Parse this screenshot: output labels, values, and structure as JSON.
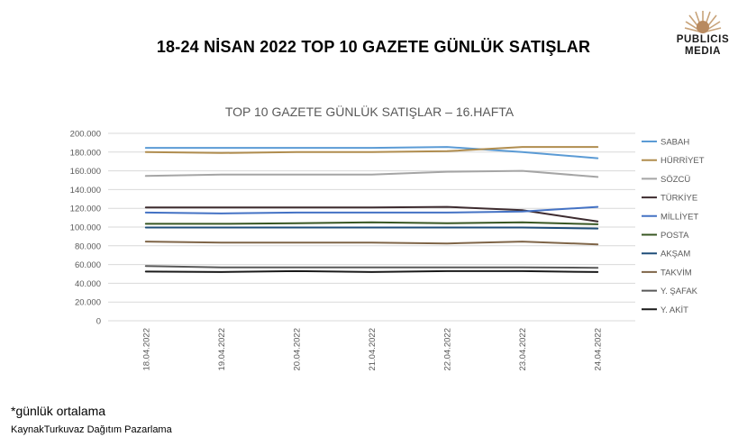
{
  "header": {
    "title": "18-24 NİSAN 2022 TOP 10 GAZETE GÜNLÜK SATIŞLAR",
    "logo_line1": "PUBLICIS",
    "logo_line2": "MEDIA"
  },
  "footer": {
    "note": "*günlük ortalama",
    "source": "KaynakTurkuvaz Dağıtım Pazarlama"
  },
  "chart_data": {
    "type": "line",
    "title": "TOP 10 GAZETE GÜNLÜK SATIŞLAR – 16.HAFTA",
    "xlabel": "",
    "ylabel": "",
    "ylim": [
      0,
      200000
    ],
    "y_ticks": [
      0,
      20000,
      40000,
      60000,
      80000,
      100000,
      120000,
      140000,
      160000,
      180000,
      200000
    ],
    "y_tick_labels": [
      "0",
      "20.000",
      "40.000",
      "60.000",
      "80.000",
      "100.000",
      "120.000",
      "140.000",
      "160.000",
      "180.000",
      "200.000"
    ],
    "grid": true,
    "legend_position": "right",
    "categories": [
      "18.04.2022",
      "19.04.2022",
      "20.04.2022",
      "21.04.2022",
      "22.04.2022",
      "23.04.2022",
      "24.04.2022"
    ],
    "series": [
      {
        "name": "SABAH",
        "color": "#5b9bd5",
        "values": [
          184500,
          184500,
          184500,
          184500,
          185500,
          180000,
          173500
        ]
      },
      {
        "name": "HÜRRİYET",
        "color": "#b08d4f",
        "values": [
          180000,
          179000,
          180000,
          180000,
          181000,
          185500,
          185500
        ]
      },
      {
        "name": "SÖZCÜ",
        "color": "#a5a5a5",
        "values": [
          154500,
          156000,
          156000,
          156000,
          159000,
          160000,
          153500
        ]
      },
      {
        "name": "TÜRKİYE",
        "color": "#3d2b2f",
        "values": [
          121000,
          121000,
          121000,
          121000,
          121500,
          118000,
          106000
        ]
      },
      {
        "name": "MİLLİYET",
        "color": "#4472c4",
        "values": [
          115500,
          114500,
          115500,
          115500,
          115500,
          116500,
          121500
        ]
      },
      {
        "name": "POSTA",
        "color": "#385723",
        "values": [
          103500,
          103500,
          104000,
          105000,
          104000,
          105000,
          103000
        ]
      },
      {
        "name": "AKŞAM",
        "color": "#1f4e79",
        "values": [
          99500,
          99500,
          99500,
          99500,
          99500,
          99500,
          98500
        ]
      },
      {
        "name": "TAKVİM",
        "color": "#7f6548",
        "values": [
          84500,
          83500,
          83500,
          83500,
          82500,
          84500,
          81500
        ]
      },
      {
        "name": "Y. ŞAFAK",
        "color": "#595959",
        "values": [
          58500,
          57000,
          57000,
          57000,
          57000,
          57000,
          56500
        ]
      },
      {
        "name": "Y. AKİT",
        "color": "#1a1a1a",
        "values": [
          52500,
          52000,
          53000,
          52000,
          53000,
          53000,
          52000
        ]
      }
    ]
  }
}
